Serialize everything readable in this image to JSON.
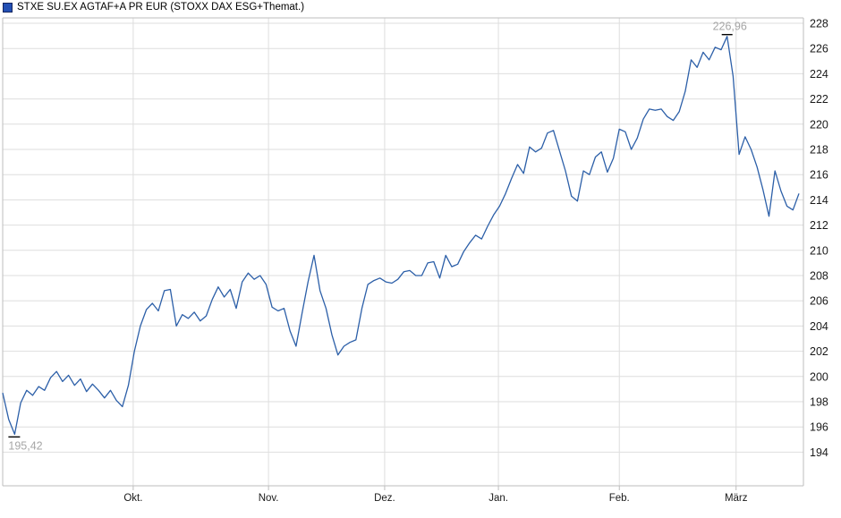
{
  "title": {
    "text": "STXE SU.EX AGTAF+A PR EUR (STOXX DAX ESG+Themat.)"
  },
  "colors": {
    "line": "#2c5fa8",
    "grid": "#dedede",
    "border": "#bdbdbd",
    "axis_text": "#1a1a1a",
    "marker_text": "#a6a6a6",
    "marker_tick": "#000000",
    "legend_fill": "#2350b4",
    "legend_border": "#14255e",
    "background": "#ffffff"
  },
  "chart_data": {
    "type": "line",
    "title": "STXE SU.EX AGTAF+A PR EUR (STOXX DAX ESG+Themat.)",
    "legend_entries": [
      "STXE SU.EX AGTAF+A PR EUR (STOXX DAX ESG+Themat.)"
    ],
    "legend_position": "top-left",
    "grid": true,
    "y_axis": {
      "min_label": 194,
      "max_label": 228,
      "step": 2,
      "side": "right"
    },
    "x_ticks": [
      {
        "label": "Okt.",
        "pos": 21.8
      },
      {
        "label": "Nov.",
        "pos": 44.4
      },
      {
        "label": "Dez.",
        "pos": 63.8
      },
      {
        "label": "Jan.",
        "pos": 82.8
      },
      {
        "label": "Feb.",
        "pos": 103.0
      },
      {
        "label": "März",
        "pos": 122.5
      }
    ],
    "high_marker": {
      "label": "226,96",
      "value": 226.96,
      "pos": 121
    },
    "low_marker": {
      "label": "195,42",
      "value": 195.42,
      "pos": 2
    },
    "series": [
      {
        "name": "STXE SU.EX AGTAF+A PR EUR",
        "values": [
          198.7,
          196.6,
          195.42,
          197.9,
          198.9,
          198.5,
          199.2,
          198.9,
          199.9,
          200.4,
          199.6,
          200.1,
          199.3,
          199.8,
          198.8,
          199.4,
          198.9,
          198.3,
          198.9,
          198.1,
          197.6,
          199.3,
          202.0,
          204.0,
          205.3,
          205.8,
          205.2,
          206.8,
          206.9,
          204.0,
          204.9,
          204.6,
          205.1,
          204.4,
          204.8,
          206.1,
          207.1,
          206.3,
          206.9,
          205.4,
          207.5,
          208.2,
          207.7,
          208.0,
          207.3,
          205.5,
          205.2,
          205.4,
          203.6,
          202.4,
          205.0,
          207.5,
          209.6,
          206.8,
          205.4,
          203.3,
          201.7,
          202.4,
          202.7,
          202.9,
          205.4,
          207.3,
          207.6,
          207.8,
          207.5,
          207.4,
          207.7,
          208.3,
          208.4,
          208.0,
          208.0,
          209.0,
          209.1,
          207.8,
          209.6,
          208.7,
          208.9,
          209.9,
          210.6,
          211.2,
          210.9,
          211.9,
          212.8,
          213.5,
          214.5,
          215.7,
          216.8,
          216.1,
          218.2,
          217.8,
          218.1,
          219.3,
          219.5,
          217.9,
          216.3,
          214.3,
          213.9,
          216.3,
          216.0,
          217.4,
          217.8,
          216.2,
          217.3,
          219.6,
          219.4,
          218.0,
          218.9,
          220.4,
          221.2,
          221.1,
          221.2,
          220.6,
          220.3,
          221.0,
          222.6,
          225.1,
          224.5,
          225.7,
          225.1,
          226.1,
          225.9,
          226.96,
          223.8,
          217.6,
          219.0,
          218.0,
          216.6,
          214.8,
          212.7,
          216.3,
          214.7,
          213.5,
          213.2,
          214.5
        ]
      }
    ]
  }
}
